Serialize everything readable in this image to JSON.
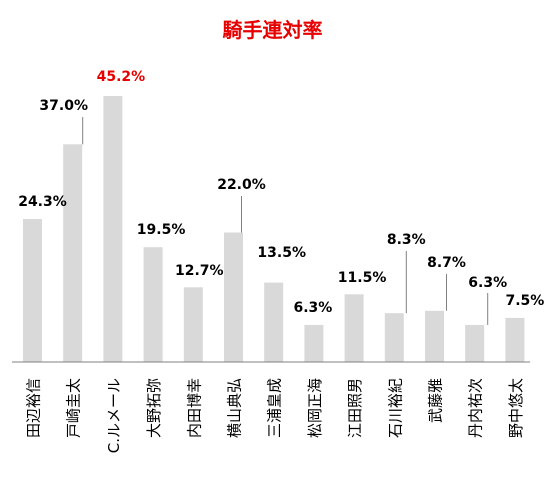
{
  "colors": {
    "bar": "#d9d9d9",
    "title": "#e60000",
    "highlight_label": "#e60000",
    "label": "#000000",
    "axis": "#808080",
    "leader": "#808080"
  },
  "chart_data": {
    "type": "bar",
    "title": "騎手連対率",
    "categories": [
      "田辺裕信",
      "戸崎圭太",
      "C.ルメール",
      "大野拓弥",
      "内田博幸",
      "横山典弘",
      "三浦皇成",
      "松岡正海",
      "江田照男",
      "石川裕紀",
      "武藤雅",
      "丹内祐次",
      "野中悠太"
    ],
    "values": [
      24.3,
      37.0,
      45.2,
      19.5,
      12.7,
      22.0,
      13.5,
      6.3,
      11.5,
      8.3,
      8.7,
      6.3,
      7.5
    ],
    "data_labels": [
      "24.3%",
      "37.0%",
      "45.2%",
      "19.5%",
      "12.7%",
      "22.0%",
      "13.5%",
      "6.3%",
      "11.5%",
      "8.3%",
      "8.7%",
      "6.3%",
      "7.5%"
    ],
    "highlight_index": 2,
    "ylim": [
      0,
      46.5
    ],
    "grid": false,
    "legend": false,
    "xlabel": "",
    "ylabel": ""
  }
}
